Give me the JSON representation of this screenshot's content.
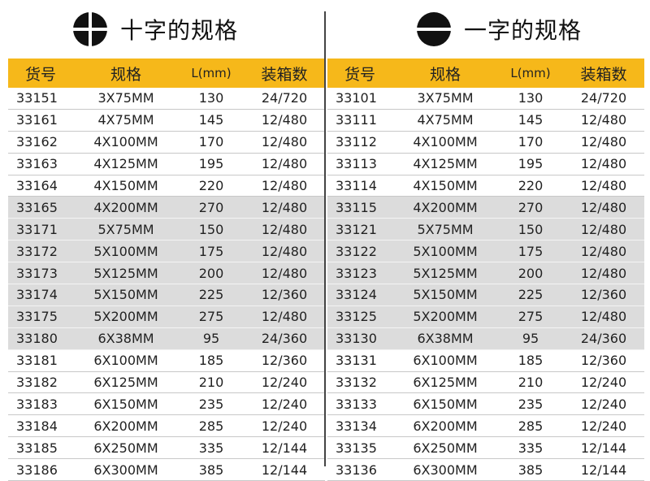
{
  "headers": {
    "code": "货号",
    "spec": "规格",
    "length": "L(mm)",
    "pack": "装箱数"
  },
  "left": {
    "title": "十字的规格",
    "icon": "phillips-head-icon",
    "rows": [
      {
        "code": "33151",
        "spec": "3X75MM",
        "length": "130",
        "pack": "24/720",
        "shaded": false
      },
      {
        "code": "33161",
        "spec": "4X75MM",
        "length": "145",
        "pack": "12/480",
        "shaded": false
      },
      {
        "code": "33162",
        "spec": "4X100MM",
        "length": "170",
        "pack": "12/480",
        "shaded": false
      },
      {
        "code": "33163",
        "spec": "4X125MM",
        "length": "195",
        "pack": "12/480",
        "shaded": false
      },
      {
        "code": "33164",
        "spec": "4X150MM",
        "length": "220",
        "pack": "12/480",
        "shaded": false
      },
      {
        "code": "33165",
        "spec": "4X200MM",
        "length": "270",
        "pack": "12/480",
        "shaded": true
      },
      {
        "code": "33171",
        "spec": "5X75MM",
        "length": "150",
        "pack": "12/480",
        "shaded": true
      },
      {
        "code": "33172",
        "spec": "5X100MM",
        "length": "175",
        "pack": "12/480",
        "shaded": true
      },
      {
        "code": "33173",
        "spec": "5X125MM",
        "length": "200",
        "pack": "12/480",
        "shaded": true
      },
      {
        "code": "33174",
        "spec": "5X150MM",
        "length": "225",
        "pack": "12/360",
        "shaded": true
      },
      {
        "code": "33175",
        "spec": "5X200MM",
        "length": "275",
        "pack": "12/480",
        "shaded": true
      },
      {
        "code": "33180",
        "spec": "6X38MM",
        "length": "95",
        "pack": "24/360",
        "shaded": true
      },
      {
        "code": "33181",
        "spec": "6X100MM",
        "length": "185",
        "pack": "12/360",
        "shaded": false
      },
      {
        "code": "33182",
        "spec": "6X125MM",
        "length": "210",
        "pack": "12/240",
        "shaded": false
      },
      {
        "code": "33183",
        "spec": "6X150MM",
        "length": "235",
        "pack": "12/240",
        "shaded": false
      },
      {
        "code": "33184",
        "spec": "6X200MM",
        "length": "285",
        "pack": "12/240",
        "shaded": false
      },
      {
        "code": "33185",
        "spec": "6X250MM",
        "length": "335",
        "pack": "12/144",
        "shaded": false
      },
      {
        "code": "33186",
        "spec": "6X300MM",
        "length": "385",
        "pack": "12/144",
        "shaded": false
      }
    ]
  },
  "right": {
    "title": "一字的规格",
    "icon": "slotted-head-icon",
    "rows": [
      {
        "code": "33101",
        "spec": "3X75MM",
        "length": "130",
        "pack": "24/720",
        "shaded": false
      },
      {
        "code": "33111",
        "spec": "4X75MM",
        "length": "145",
        "pack": "12/480",
        "shaded": false
      },
      {
        "code": "33112",
        "spec": "4X100MM",
        "length": "170",
        "pack": "12/480",
        "shaded": false
      },
      {
        "code": "33113",
        "spec": "4X125MM",
        "length": "195",
        "pack": "12/480",
        "shaded": false
      },
      {
        "code": "33114",
        "spec": "4X150MM",
        "length": "220",
        "pack": "12/480",
        "shaded": false
      },
      {
        "code": "33115",
        "spec": "4X200MM",
        "length": "270",
        "pack": "12/480",
        "shaded": true
      },
      {
        "code": "33121",
        "spec": "5X75MM",
        "length": "150",
        "pack": "12/480",
        "shaded": true
      },
      {
        "code": "33122",
        "spec": "5X100MM",
        "length": "175",
        "pack": "12/480",
        "shaded": true
      },
      {
        "code": "33123",
        "spec": "5X125MM",
        "length": "200",
        "pack": "12/480",
        "shaded": true
      },
      {
        "code": "33124",
        "spec": "5X150MM",
        "length": "225",
        "pack": "12/360",
        "shaded": true
      },
      {
        "code": "33125",
        "spec": "5X200MM",
        "length": "275",
        "pack": "12/480",
        "shaded": true
      },
      {
        "code": "33130",
        "spec": "6X38MM",
        "length": "95",
        "pack": "24/360",
        "shaded": true
      },
      {
        "code": "33131",
        "spec": "6X100MM",
        "length": "185",
        "pack": "12/360",
        "shaded": false
      },
      {
        "code": "33132",
        "spec": "6X125MM",
        "length": "210",
        "pack": "12/240",
        "shaded": false
      },
      {
        "code": "33133",
        "spec": "6X150MM",
        "length": "235",
        "pack": "12/240",
        "shaded": false
      },
      {
        "code": "33134",
        "spec": "6X200MM",
        "length": "285",
        "pack": "12/240",
        "shaded": false
      },
      {
        "code": "33135",
        "spec": "6X250MM",
        "length": "335",
        "pack": "12/144",
        "shaded": false
      },
      {
        "code": "33136",
        "spec": "6X300MM",
        "length": "385",
        "pack": "12/144",
        "shaded": false
      }
    ]
  },
  "colors": {
    "header": "#f6b81a",
    "shade": "#dcdcdc"
  }
}
